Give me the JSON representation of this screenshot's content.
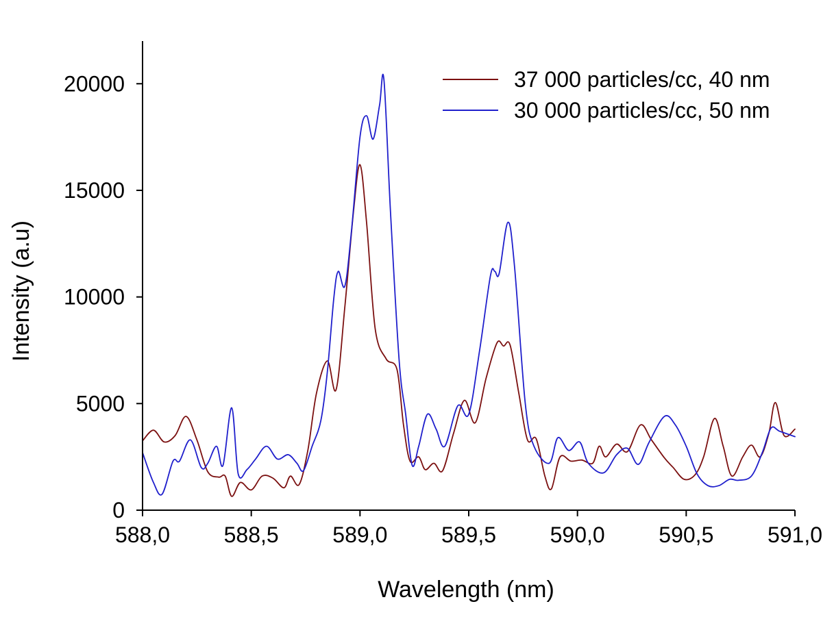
{
  "chart_data": {
    "type": "line",
    "xlabel": "Wavelength (nm)",
    "ylabel": "Intensity (a.u)",
    "xlim": [
      588.0,
      591.0
    ],
    "ylim": [
      0,
      22000
    ],
    "x_ticks": [
      588.0,
      588.5,
      589.0,
      589.5,
      590.0,
      590.5,
      591.0
    ],
    "x_tick_labels": [
      "588,0",
      "588,5",
      "589,0",
      "589,5",
      "590,0",
      "590,5",
      "591,0"
    ],
    "y_ticks": [
      0,
      5000,
      10000,
      15000,
      20000
    ],
    "y_tick_labels": [
      "0",
      "5000",
      "10000",
      "15000",
      "20000"
    ],
    "grid": false,
    "legend_position": "top-right",
    "series": [
      {
        "name": "37 000 particles/cc, 40 nm",
        "color": "#7b1010",
        "points": [
          [
            588.0,
            3250
          ],
          [
            588.05,
            3750
          ],
          [
            588.1,
            3200
          ],
          [
            588.15,
            3500
          ],
          [
            588.2,
            4400
          ],
          [
            588.25,
            3300
          ],
          [
            588.3,
            1800
          ],
          [
            588.35,
            1550
          ],
          [
            588.38,
            1600
          ],
          [
            588.41,
            650
          ],
          [
            588.45,
            1300
          ],
          [
            588.5,
            950
          ],
          [
            588.55,
            1600
          ],
          [
            588.6,
            1500
          ],
          [
            588.65,
            1050
          ],
          [
            588.68,
            1600
          ],
          [
            588.72,
            1200
          ],
          [
            588.76,
            2800
          ],
          [
            588.8,
            5500
          ],
          [
            588.85,
            7000
          ],
          [
            588.89,
            5650
          ],
          [
            588.93,
            9500
          ],
          [
            588.97,
            14000
          ],
          [
            589.0,
            16200
          ],
          [
            589.03,
            13500
          ],
          [
            589.07,
            8500
          ],
          [
            589.12,
            7100
          ],
          [
            589.17,
            6600
          ],
          [
            589.2,
            4000
          ],
          [
            589.23,
            2300
          ],
          [
            589.27,
            2500
          ],
          [
            589.3,
            1900
          ],
          [
            589.34,
            2200
          ],
          [
            589.38,
            1850
          ],
          [
            589.43,
            3600
          ],
          [
            589.48,
            5150
          ],
          [
            589.53,
            4100
          ],
          [
            589.58,
            6200
          ],
          [
            589.63,
            7850
          ],
          [
            589.66,
            7700
          ],
          [
            589.69,
            7750
          ],
          [
            589.73,
            5500
          ],
          [
            589.77,
            3300
          ],
          [
            589.81,
            3350
          ],
          [
            589.85,
            1600
          ],
          [
            589.88,
            1000
          ],
          [
            589.92,
            2500
          ],
          [
            589.97,
            2300
          ],
          [
            590.02,
            2350
          ],
          [
            590.07,
            2200
          ],
          [
            590.1,
            3000
          ],
          [
            590.13,
            2500
          ],
          [
            590.18,
            3100
          ],
          [
            590.23,
            2750
          ],
          [
            590.29,
            4000
          ],
          [
            590.34,
            3300
          ],
          [
            590.4,
            2450
          ],
          [
            590.44,
            2000
          ],
          [
            590.49,
            1450
          ],
          [
            590.54,
            1650
          ],
          [
            590.58,
            2500
          ],
          [
            590.63,
            4300
          ],
          [
            590.67,
            3000
          ],
          [
            590.71,
            1600
          ],
          [
            590.76,
            2500
          ],
          [
            590.8,
            3050
          ],
          [
            590.84,
            2500
          ],
          [
            590.88,
            3600
          ],
          [
            590.91,
            5050
          ],
          [
            590.95,
            3500
          ],
          [
            591.0,
            3800
          ]
        ]
      },
      {
        "name": "30 000 particles/cc, 50 nm",
        "color": "#1f1fcc",
        "points": [
          [
            588.0,
            2700
          ],
          [
            588.05,
            1300
          ],
          [
            588.09,
            750
          ],
          [
            588.14,
            2300
          ],
          [
            588.17,
            2300
          ],
          [
            588.22,
            3300
          ],
          [
            588.27,
            2000
          ],
          [
            588.3,
            2200
          ],
          [
            588.34,
            3000
          ],
          [
            588.37,
            2100
          ],
          [
            588.41,
            4800
          ],
          [
            588.44,
            1700
          ],
          [
            588.48,
            1900
          ],
          [
            588.52,
            2400
          ],
          [
            588.57,
            3000
          ],
          [
            588.62,
            2400
          ],
          [
            588.67,
            2600
          ],
          [
            588.71,
            2200
          ],
          [
            588.74,
            1850
          ],
          [
            588.78,
            3000
          ],
          [
            588.82,
            4200
          ],
          [
            588.85,
            6500
          ],
          [
            588.88,
            10000
          ],
          [
            588.9,
            11200
          ],
          [
            588.93,
            10500
          ],
          [
            588.96,
            13000
          ],
          [
            589.0,
            17500
          ],
          [
            589.03,
            18500
          ],
          [
            589.06,
            17400
          ],
          [
            589.09,
            19000
          ],
          [
            589.11,
            20200
          ],
          [
            589.14,
            14000
          ],
          [
            589.18,
            7000
          ],
          [
            589.21,
            4500
          ],
          [
            589.24,
            2100
          ],
          [
            589.27,
            3000
          ],
          [
            589.31,
            4500
          ],
          [
            589.35,
            3800
          ],
          [
            589.39,
            3000
          ],
          [
            589.45,
            4900
          ],
          [
            589.5,
            4500
          ],
          [
            589.55,
            7500
          ],
          [
            589.6,
            11000
          ],
          [
            589.62,
            11200
          ],
          [
            589.64,
            11100
          ],
          [
            589.68,
            13500
          ],
          [
            589.71,
            11500
          ],
          [
            589.76,
            5000
          ],
          [
            589.8,
            3000
          ],
          [
            589.87,
            2200
          ],
          [
            589.91,
            3400
          ],
          [
            589.96,
            2800
          ],
          [
            590.01,
            3200
          ],
          [
            590.05,
            2200
          ],
          [
            590.12,
            1750
          ],
          [
            590.18,
            2600
          ],
          [
            590.23,
            2900
          ],
          [
            590.28,
            2150
          ],
          [
            590.33,
            3200
          ],
          [
            590.4,
            4400
          ],
          [
            590.45,
            4000
          ],
          [
            590.5,
            3000
          ],
          [
            590.55,
            1700
          ],
          [
            590.6,
            1150
          ],
          [
            590.65,
            1150
          ],
          [
            590.7,
            1450
          ],
          [
            590.74,
            1400
          ],
          [
            590.8,
            1600
          ],
          [
            590.85,
            2700
          ],
          [
            590.89,
            3850
          ],
          [
            590.93,
            3700
          ],
          [
            591.0,
            3450
          ]
        ]
      }
    ]
  }
}
